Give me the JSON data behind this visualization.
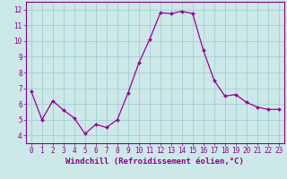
{
  "x": [
    0,
    1,
    2,
    3,
    4,
    5,
    6,
    7,
    8,
    9,
    10,
    11,
    12,
    13,
    14,
    15,
    16,
    17,
    18,
    19,
    20,
    21,
    22,
    23
  ],
  "y": [
    6.8,
    5.0,
    6.2,
    5.6,
    5.1,
    4.1,
    4.7,
    4.5,
    5.0,
    6.7,
    8.6,
    10.1,
    11.8,
    11.75,
    11.9,
    11.75,
    9.4,
    7.5,
    6.5,
    6.6,
    6.1,
    5.8,
    5.65,
    5.65
  ],
  "line_color": "#990099",
  "marker_color": "#990099",
  "bg_color": "#cce8e8",
  "grid_color": "#99cccc",
  "axis_color": "#880088",
  "xlabel": "Windchill (Refroidissement éolien,°C)",
  "xlim": [
    -0.5,
    23.5
  ],
  "ylim": [
    3.5,
    12.5
  ],
  "yticks": [
    4,
    5,
    6,
    7,
    8,
    9,
    10,
    11,
    12
  ],
  "xticks": [
    0,
    1,
    2,
    3,
    4,
    5,
    6,
    7,
    8,
    9,
    10,
    11,
    12,
    13,
    14,
    15,
    16,
    17,
    18,
    19,
    20,
    21,
    22,
    23
  ],
  "tick_label_fontsize": 5.5,
  "xlabel_fontsize": 6.5,
  "marker_size": 2.0,
  "line_width": 0.9
}
